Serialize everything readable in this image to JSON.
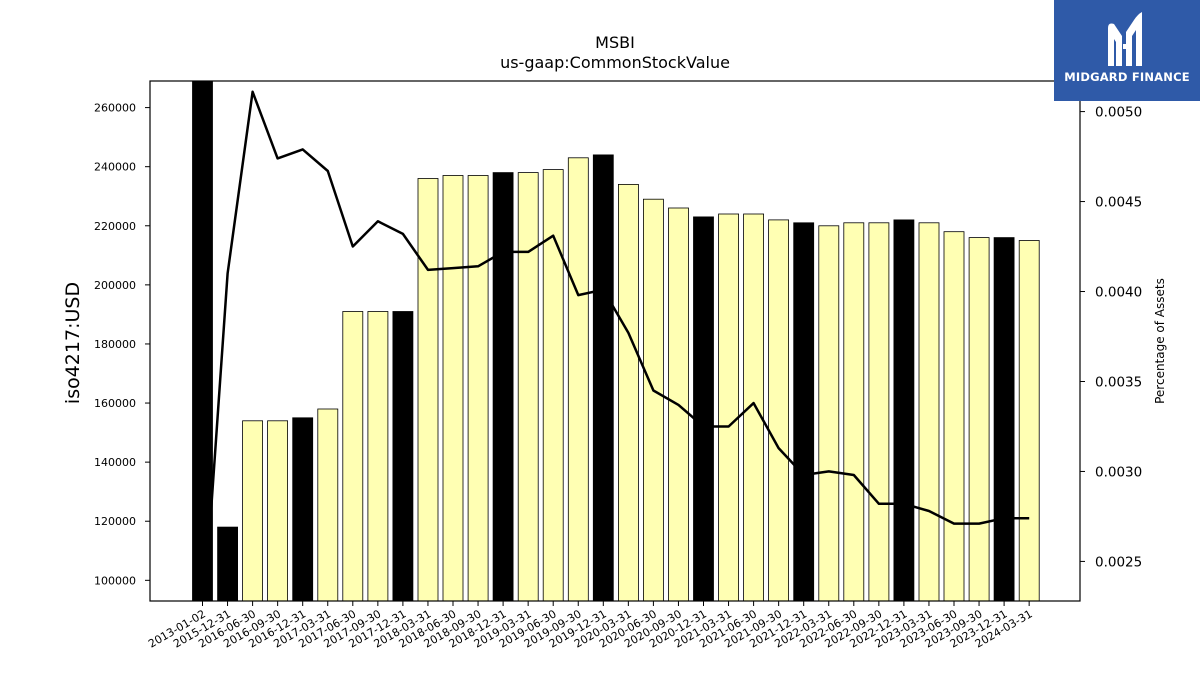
{
  "chart_data": {
    "type": "bar",
    "title": "MSBI",
    "subtitle": "us-gaap:CommonStockValue",
    "ylabel": "iso4217:USD",
    "y2label": "Percentage of Assets",
    "ylim": [
      93000,
      269000
    ],
    "y2lim": [
      0.00228,
      0.00517
    ],
    "yticks": [
      100000,
      120000,
      140000,
      160000,
      180000,
      200000,
      220000,
      240000,
      260000
    ],
    "y2ticks": [
      "0.0025",
      "0.0030",
      "0.0035",
      "0.0040",
      "0.0045",
      "0.0050"
    ],
    "categories": [
      "2013-01-02",
      "2015-12-31",
      "2016-06-30",
      "2016-09-30",
      "2016-12-31",
      "2017-03-31",
      "2017-06-30",
      "2017-09-30",
      "2017-12-31",
      "2018-03-31",
      "2018-06-30",
      "2018-09-30",
      "2018-12-31",
      "2019-03-31",
      "2019-06-30",
      "2019-09-30",
      "2019-12-31",
      "2020-03-31",
      "2020-06-30",
      "2020-09-30",
      "2020-12-31",
      "2021-03-31",
      "2021-06-30",
      "2021-09-30",
      "2021-12-31",
      "2022-03-31",
      "2022-06-30",
      "2022-09-30",
      "2022-12-31",
      "2023-03-31",
      "2023-06-30",
      "2023-09-30",
      "2023-12-31",
      "2024-03-31"
    ],
    "series": [
      {
        "type": "bar",
        "values": [
          269000,
          118000,
          154000,
          154000,
          155000,
          158000,
          191000,
          191000,
          191000,
          236000,
          237000,
          237000,
          238000,
          238000,
          239000,
          243000,
          244000,
          234000,
          229000,
          226000,
          223000,
          224000,
          224000,
          222000,
          221000,
          220000,
          221000,
          221000,
          222000,
          221000,
          218000,
          216000,
          216000,
          215000
        ],
        "annual": [
          true,
          true,
          false,
          false,
          true,
          false,
          false,
          false,
          true,
          false,
          false,
          false,
          true,
          false,
          false,
          false,
          true,
          false,
          false,
          false,
          true,
          false,
          false,
          false,
          true,
          false,
          false,
          false,
          true,
          false,
          false,
          false,
          true,
          false
        ]
      },
      {
        "type": "line",
        "axis": "right",
        "values": [
          0.0021,
          0.0041,
          0.00511,
          0.00474,
          0.00479,
          0.00467,
          0.00425,
          0.00439,
          0.00432,
          0.00412,
          0.00413,
          0.00414,
          0.00422,
          0.00422,
          0.00431,
          0.00398,
          0.00401,
          0.00377,
          0.00345,
          0.00337,
          0.00325,
          0.00325,
          0.00338,
          0.00313,
          0.00298,
          0.003,
          0.00298,
          0.00282,
          0.00282,
          0.00278,
          0.00271,
          0.00271,
          0.00274,
          0.00274
        ]
      }
    ],
    "colors": {
      "quarter_bar": "#ffffb3",
      "annual_bar": "#000000",
      "line": "#000000"
    }
  },
  "logo": {
    "text": "MIDGARD FINANCE",
    "background": "#2f5aa8"
  }
}
